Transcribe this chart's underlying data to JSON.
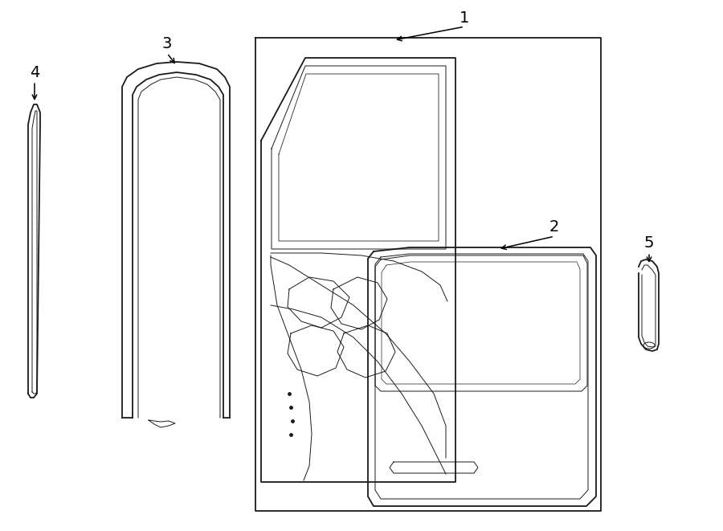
{
  "bg_color": "#ffffff",
  "line_color": "#1a1a1a",
  "lw_main": 1.3,
  "lw_thin": 0.7,
  "figsize": [
    9.0,
    6.61
  ],
  "dpi": 100
}
